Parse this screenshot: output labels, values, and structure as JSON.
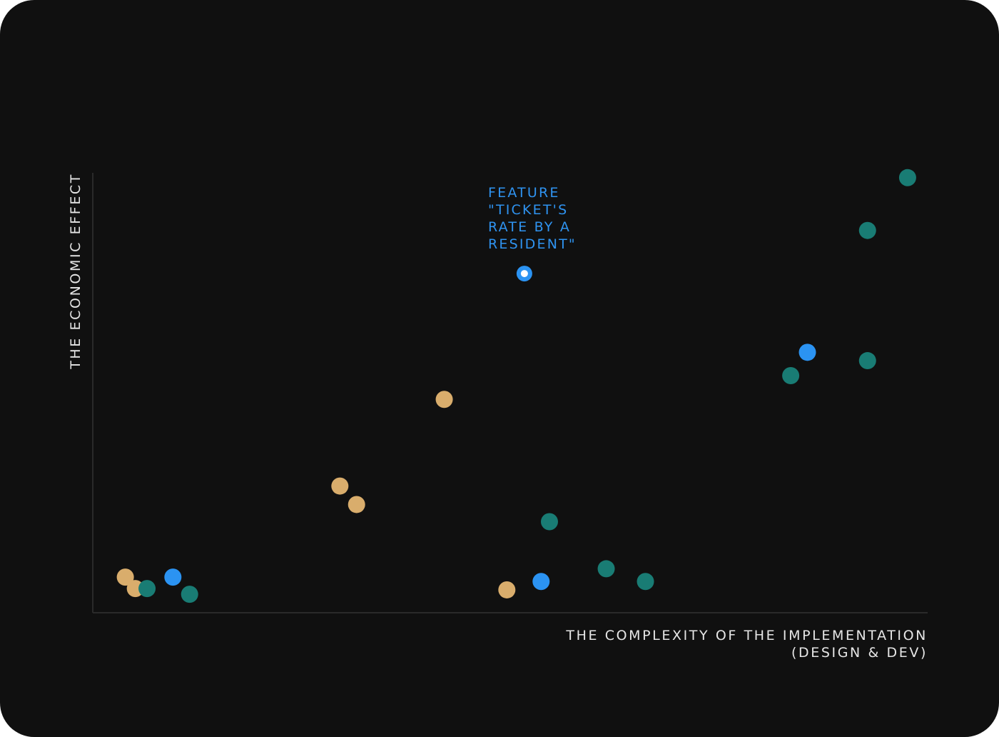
{
  "chart_data": {
    "type": "scatter",
    "title": "",
    "xlabel_lines": [
      "THE COMPLEXITY OF THE IMPLEMENTATION",
      "(DESIGN & DEV)"
    ],
    "ylabel": "THE ECONOMIC EFFECT",
    "xlim": [
      0,
      100
    ],
    "ylim": [
      0,
      100
    ],
    "grid": false,
    "legend": "none",
    "colors": {
      "background": "#101010",
      "axis": "#2a2a2a",
      "tan": "#d9ad6c",
      "blue": "#2b93f2",
      "teal": "#197c74",
      "highlight_center": "#ffffff"
    },
    "points": [
      {
        "x": 3.9,
        "y": 8.1,
        "color": "tan"
      },
      {
        "x": 5.1,
        "y": 5.5,
        "color": "tan"
      },
      {
        "x": 6.5,
        "y": 5.5,
        "color": "teal"
      },
      {
        "x": 9.6,
        "y": 8.1,
        "color": "blue"
      },
      {
        "x": 11.6,
        "y": 4.2,
        "color": "teal"
      },
      {
        "x": 29.6,
        "y": 28.8,
        "color": "tan"
      },
      {
        "x": 31.6,
        "y": 24.6,
        "color": "tan"
      },
      {
        "x": 42.1,
        "y": 48.5,
        "color": "tan"
      },
      {
        "x": 49.6,
        "y": 5.2,
        "color": "tan"
      },
      {
        "x": 53.7,
        "y": 7.1,
        "color": "blue"
      },
      {
        "x": 54.7,
        "y": 20.7,
        "color": "teal"
      },
      {
        "x": 61.5,
        "y": 10.0,
        "color": "teal"
      },
      {
        "x": 66.2,
        "y": 7.1,
        "color": "teal"
      },
      {
        "x": 83.6,
        "y": 53.9,
        "color": "teal"
      },
      {
        "x": 85.6,
        "y": 59.2,
        "color": "blue"
      },
      {
        "x": 92.8,
        "y": 57.3,
        "color": "teal"
      },
      {
        "x": 92.8,
        "y": 86.9,
        "color": "teal"
      },
      {
        "x": 97.6,
        "y": 98.9,
        "color": "teal"
      }
    ],
    "highlight": {
      "x": 51.7,
      "y": 77.1,
      "color": "blue",
      "label_lines": [
        "FEATURE",
        "\"TICKET'S",
        "RATE BY A",
        "RESIDENT\""
      ]
    }
  }
}
